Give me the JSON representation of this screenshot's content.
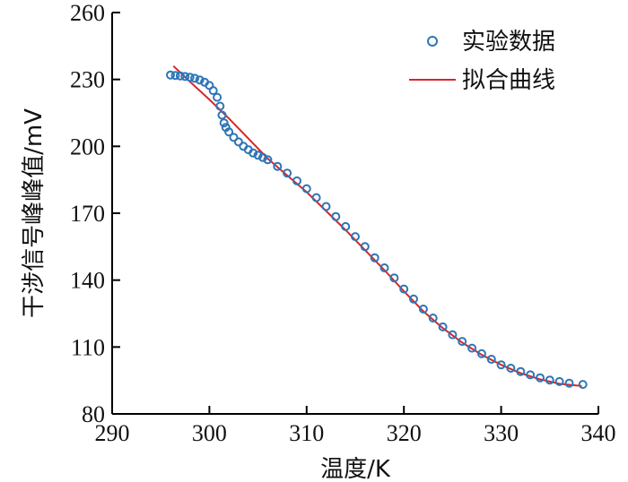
{
  "chart_data": {
    "type": "scatter",
    "xlabel": "温度/K",
    "ylabel": "干涉信号峰峰值/mV",
    "xlim": [
      290,
      340
    ],
    "ylim": [
      80,
      260
    ],
    "xticks": [
      "290",
      "300",
      "310",
      "320",
      "330",
      "340"
    ],
    "yticks": [
      "80",
      "110",
      "140",
      "170",
      "200",
      "230",
      "260"
    ],
    "grid": false,
    "legend_position": "top-right",
    "colors": {
      "scatter": "#2e75b6",
      "fit": "#d62728"
    },
    "series": [
      {
        "name": "实验数据",
        "kind": "scatter",
        "x": [
          296.0,
          296.5,
          297.0,
          297.5,
          298.0,
          298.5,
          299.0,
          299.5,
          300.0,
          300.4,
          300.8,
          301.1,
          301.3,
          301.5,
          301.7,
          302.0,
          302.5,
          303.0,
          303.5,
          304.0,
          304.5,
          305.0,
          305.5,
          306.0,
          307.0,
          308.0,
          309.0,
          310.0,
          311.0,
          312.0,
          313.0,
          314.0,
          315.0,
          316.0,
          317.0,
          318.0,
          319.0,
          320.0,
          321.0,
          322.0,
          323.0,
          324.0,
          325.0,
          326.0,
          327.0,
          328.0,
          329.0,
          330.0,
          331.0,
          332.0,
          333.0,
          334.0,
          335.0,
          336.0,
          337.0,
          338.4
        ],
        "y": [
          232.0,
          231.8,
          231.6,
          231.3,
          231.0,
          230.5,
          229.8,
          228.8,
          227.3,
          225.0,
          222.0,
          218.0,
          214.0,
          210.5,
          208.5,
          206.5,
          204.0,
          202.0,
          200.0,
          198.5,
          197.0,
          196.0,
          195.0,
          194.0,
          191.0,
          188.0,
          184.5,
          181.0,
          177.0,
          173.0,
          168.5,
          164.0,
          159.5,
          155.0,
          150.0,
          145.5,
          141.0,
          136.0,
          131.5,
          127.0,
          123.0,
          119.0,
          115.5,
          112.5,
          109.5,
          107.0,
          104.5,
          102.0,
          100.5,
          99.0,
          97.5,
          96.2,
          95.2,
          94.5,
          93.8,
          93.2
        ]
      },
      {
        "name": "拟合曲线",
        "kind": "line",
        "x": [
          296.3,
          298,
          300,
          302,
          304,
          306,
          308,
          310,
          312,
          314,
          316,
          318,
          320,
          322,
          324,
          326,
          328,
          330,
          332,
          334,
          336,
          338.3
        ],
        "y": [
          236.0,
          229.0,
          221.0,
          212.5,
          203.5,
          194.5,
          187.0,
          179.5,
          171.0,
          162.5,
          153.5,
          144.5,
          135.0,
          126.0,
          118.5,
          112.0,
          106.5,
          102.0,
          98.3,
          95.5,
          93.5,
          92.5
        ]
      }
    ]
  }
}
